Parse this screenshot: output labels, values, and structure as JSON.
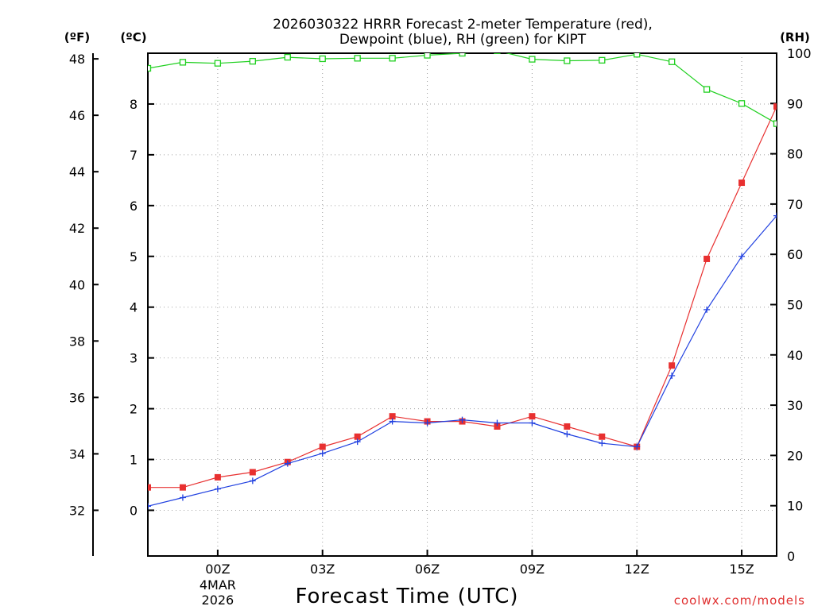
{
  "chart_data": {
    "type": "line",
    "title": [
      "2026030322 HRRR Forecast 2-meter Temperature (red),",
      "Dewpoint (blue), RH (green) for KIPT"
    ],
    "xlabel": "Forecast Time (UTC)",
    "credit": "coolwx.com/models",
    "units": {
      "fahrenheit": "(ºF)",
      "celsius": "(ºC)",
      "rh": "(RH)"
    },
    "x_range": [
      -2,
      16
    ],
    "x_ticks": [
      {
        "hour": 0,
        "label": "00Z",
        "sublabels": [
          "4MAR",
          "2026"
        ]
      },
      {
        "hour": 3,
        "label": "03Z",
        "sublabels": []
      },
      {
        "hour": 6,
        "label": "06Z",
        "sublabels": []
      },
      {
        "hour": 9,
        "label": "09Z",
        "sublabels": []
      },
      {
        "hour": 12,
        "label": "12Z",
        "sublabels": []
      },
      {
        "hour": 15,
        "label": "15Z",
        "sublabels": []
      }
    ],
    "celsius_range": [
      -0.9,
      9.0
    ],
    "celsius_ticks": [
      0,
      1,
      2,
      3,
      4,
      5,
      6,
      7,
      8
    ],
    "fahrenheit_ticks": [
      32,
      34,
      36,
      38,
      40,
      42,
      44,
      46,
      48
    ],
    "rh_range": [
      0,
      100
    ],
    "rh_ticks": [
      0,
      10,
      20,
      30,
      40,
      50,
      60,
      70,
      80,
      90,
      100
    ],
    "hours": [
      -2,
      -1,
      0,
      1,
      2,
      3,
      4,
      5,
      6,
      7,
      8,
      9,
      10,
      11,
      12,
      13,
      14,
      15,
      16
    ],
    "series": [
      {
        "name": "Temperature",
        "unit": "C",
        "color": "#e83030",
        "marker": "filled-square",
        "values": [
          0.45,
          0.45,
          0.65,
          0.75,
          0.95,
          1.25,
          1.45,
          1.85,
          1.75,
          1.75,
          1.65,
          1.85,
          1.65,
          1.45,
          1.25,
          2.85,
          4.95,
          6.45,
          7.95
        ]
      },
      {
        "name": "Dewpoint",
        "unit": "C",
        "color": "#2040e0",
        "marker": "plus",
        "values": [
          0.08,
          0.25,
          0.42,
          0.58,
          0.92,
          1.12,
          1.35,
          1.75,
          1.72,
          1.78,
          1.72,
          1.72,
          1.5,
          1.32,
          1.25,
          2.65,
          3.95,
          5.0,
          5.8
        ]
      },
      {
        "name": "RH",
        "unit": "%",
        "color": "#20d020",
        "marker": "open-square",
        "values": [
          97.0,
          98.2,
          98.0,
          98.4,
          99.2,
          98.9,
          99.0,
          99.0,
          99.6,
          100.0,
          100.5,
          98.8,
          98.5,
          98.6,
          99.8,
          98.3,
          92.8,
          90.0,
          86.0
        ]
      }
    ]
  }
}
